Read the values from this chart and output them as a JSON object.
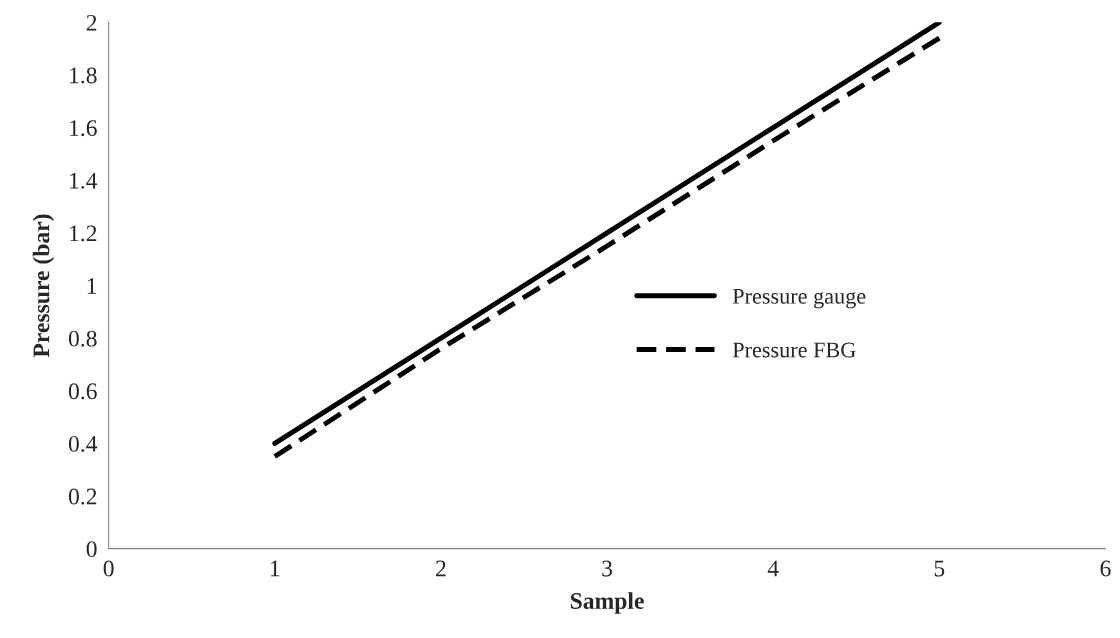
{
  "chart_data": {
    "type": "line",
    "xlabel": "Sample",
    "ylabel": "Pressure (bar)",
    "x": [
      1,
      2,
      3,
      4,
      5
    ],
    "series": [
      {
        "name": "Pressure gauge",
        "color": "#000000",
        "values": [
          0.4,
          0.8,
          1.2,
          1.6,
          2.0
        ],
        "line_style": "solid"
      },
      {
        "name": "Pressure FBG",
        "color": "#000000",
        "values": [
          0.35,
          0.76,
          1.15,
          1.55,
          1.94
        ],
        "line_style": "dashed"
      }
    ],
    "xlim": [
      0,
      6
    ],
    "xticks": [
      0,
      1,
      2,
      3,
      4,
      5,
      6
    ],
    "ylim": [
      0,
      2
    ],
    "yticks": [
      0,
      0.2,
      0.4,
      0.6,
      0.8,
      1,
      1.2,
      1.4,
      1.6,
      1.8,
      2
    ],
    "grid": false,
    "legend": "center right",
    "marker": "none"
  }
}
